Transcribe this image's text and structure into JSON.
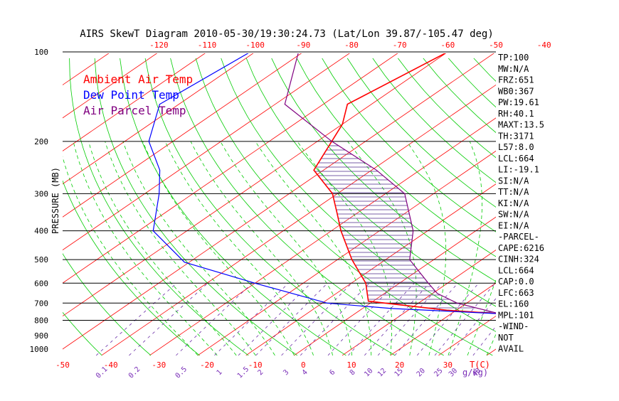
{
  "chart_data": {
    "type": "line",
    "title": "AIRS SkewT Diagram 2010-05-30/19:30:24.73 (Lat/Lon 39.87/-105.47 deg)",
    "ylabel": "PRESSURE (MB)",
    "x_unit_label": "T(C)",
    "mixing_ratio_unit_label": "g/kg)",
    "y_scale": "log",
    "ylim": [
      1000,
      100
    ],
    "xlim_bottom": [
      -50,
      40
    ],
    "skew_per_decade": 90,
    "top_ticks": [
      "-120",
      "-110",
      "-100",
      "-90",
      "-80",
      "-70",
      "-60",
      "-50",
      "-40"
    ],
    "bottom_ticks": [
      "-50",
      "-40",
      "-30",
      "-20",
      "-10",
      "0",
      "10",
      "20",
      "30"
    ],
    "pressure_ticks": [
      "100",
      "200",
      "300",
      "400",
      "500",
      "600",
      "700",
      "800",
      "900",
      "1000"
    ],
    "mixing_ratio_labels": [
      "0.1",
      "0.2",
      "0.5",
      "1",
      "1.5",
      "2",
      "3",
      "4",
      "6",
      "8",
      "10",
      "12",
      "15",
      "20",
      "25",
      "30",
      "40"
    ],
    "legend": [
      {
        "label": "Ambient Air Temp",
        "color": "#ff0000"
      },
      {
        "label": "Dew Point Temp",
        "color": "#0000ff"
      },
      {
        "label": "Air Parcel Temp",
        "color": "#800080"
      }
    ],
    "series": [
      {
        "name": "Ambient Air Temp",
        "color": "#ff0000",
        "points": [
          {
            "p": 100,
            "t": -60
          },
          {
            "p": 150,
            "t": -65
          },
          {
            "p": 175,
            "t": -60
          },
          {
            "p": 200,
            "t": -57
          },
          {
            "p": 250,
            "t": -52
          },
          {
            "p": 300,
            "t": -41
          },
          {
            "p": 350,
            "t": -34
          },
          {
            "p": 400,
            "t": -28
          },
          {
            "p": 500,
            "t": -17
          },
          {
            "p": 600,
            "t": -7
          },
          {
            "p": 690,
            "t": -1
          },
          {
            "p": 740,
            "t": 18
          },
          {
            "p": 760,
            "t": 30
          }
        ]
      },
      {
        "name": "Dew Point Temp",
        "color": "#0000ff",
        "points": [
          {
            "p": 100,
            "t": -101
          },
          {
            "p": 150,
            "t": -104
          },
          {
            "p": 200,
            "t": -95
          },
          {
            "p": 250,
            "t": -84
          },
          {
            "p": 300,
            "t": -77
          },
          {
            "p": 400,
            "t": -67
          },
          {
            "p": 510,
            "t": -51
          },
          {
            "p": 600,
            "t": -30
          },
          {
            "p": 700,
            "t": -9
          },
          {
            "p": 730,
            "t": 6
          },
          {
            "p": 760,
            "t": 30
          }
        ]
      },
      {
        "name": "Air Parcel Temp",
        "color": "#800080",
        "points": [
          {
            "p": 100,
            "t": -91
          },
          {
            "p": 150,
            "t": -78
          },
          {
            "p": 200,
            "t": -57
          },
          {
            "p": 250,
            "t": -39
          },
          {
            "p": 300,
            "t": -26
          },
          {
            "p": 400,
            "t": -13
          },
          {
            "p": 500,
            "t": -5
          },
          {
            "p": 600,
            "t": 6
          },
          {
            "p": 650,
            "t": 11
          },
          {
            "p": 700,
            "t": 18
          },
          {
            "p": 760,
            "t": 30
          }
        ]
      }
    ],
    "stats_panel": [
      "TP:100",
      "MW:N/A",
      "FRZ:651",
      "WB0:367",
      "PW:19.61",
      "RH:40.1",
      "MAXT:13.5",
      "TH:3171",
      "L57:8.0",
      "LCL:664",
      "LI:-19.1",
      "SI:N/A",
      "TT:N/A",
      "KI:N/A",
      "SW:N/A",
      "EI:N/A",
      "-PARCEL-",
      "CAPE:6216",
      "CINH:324",
      "LCL:664",
      "CAP:0.0",
      "LFC:663",
      "EL:160",
      "MPL:101",
      "-WIND-",
      "NOT",
      "AVAIL"
    ],
    "colors": {
      "isotherm": "#ff0000",
      "dry_adiabat": "#00cc00",
      "moist_adiabat": "#00cc00",
      "mixing_ratio": "#6b2fa8",
      "cape_hatch": "#4b2a8a",
      "axis_text_red": "#ff0000",
      "axis_text_purple": "#7a2fb8"
    }
  }
}
